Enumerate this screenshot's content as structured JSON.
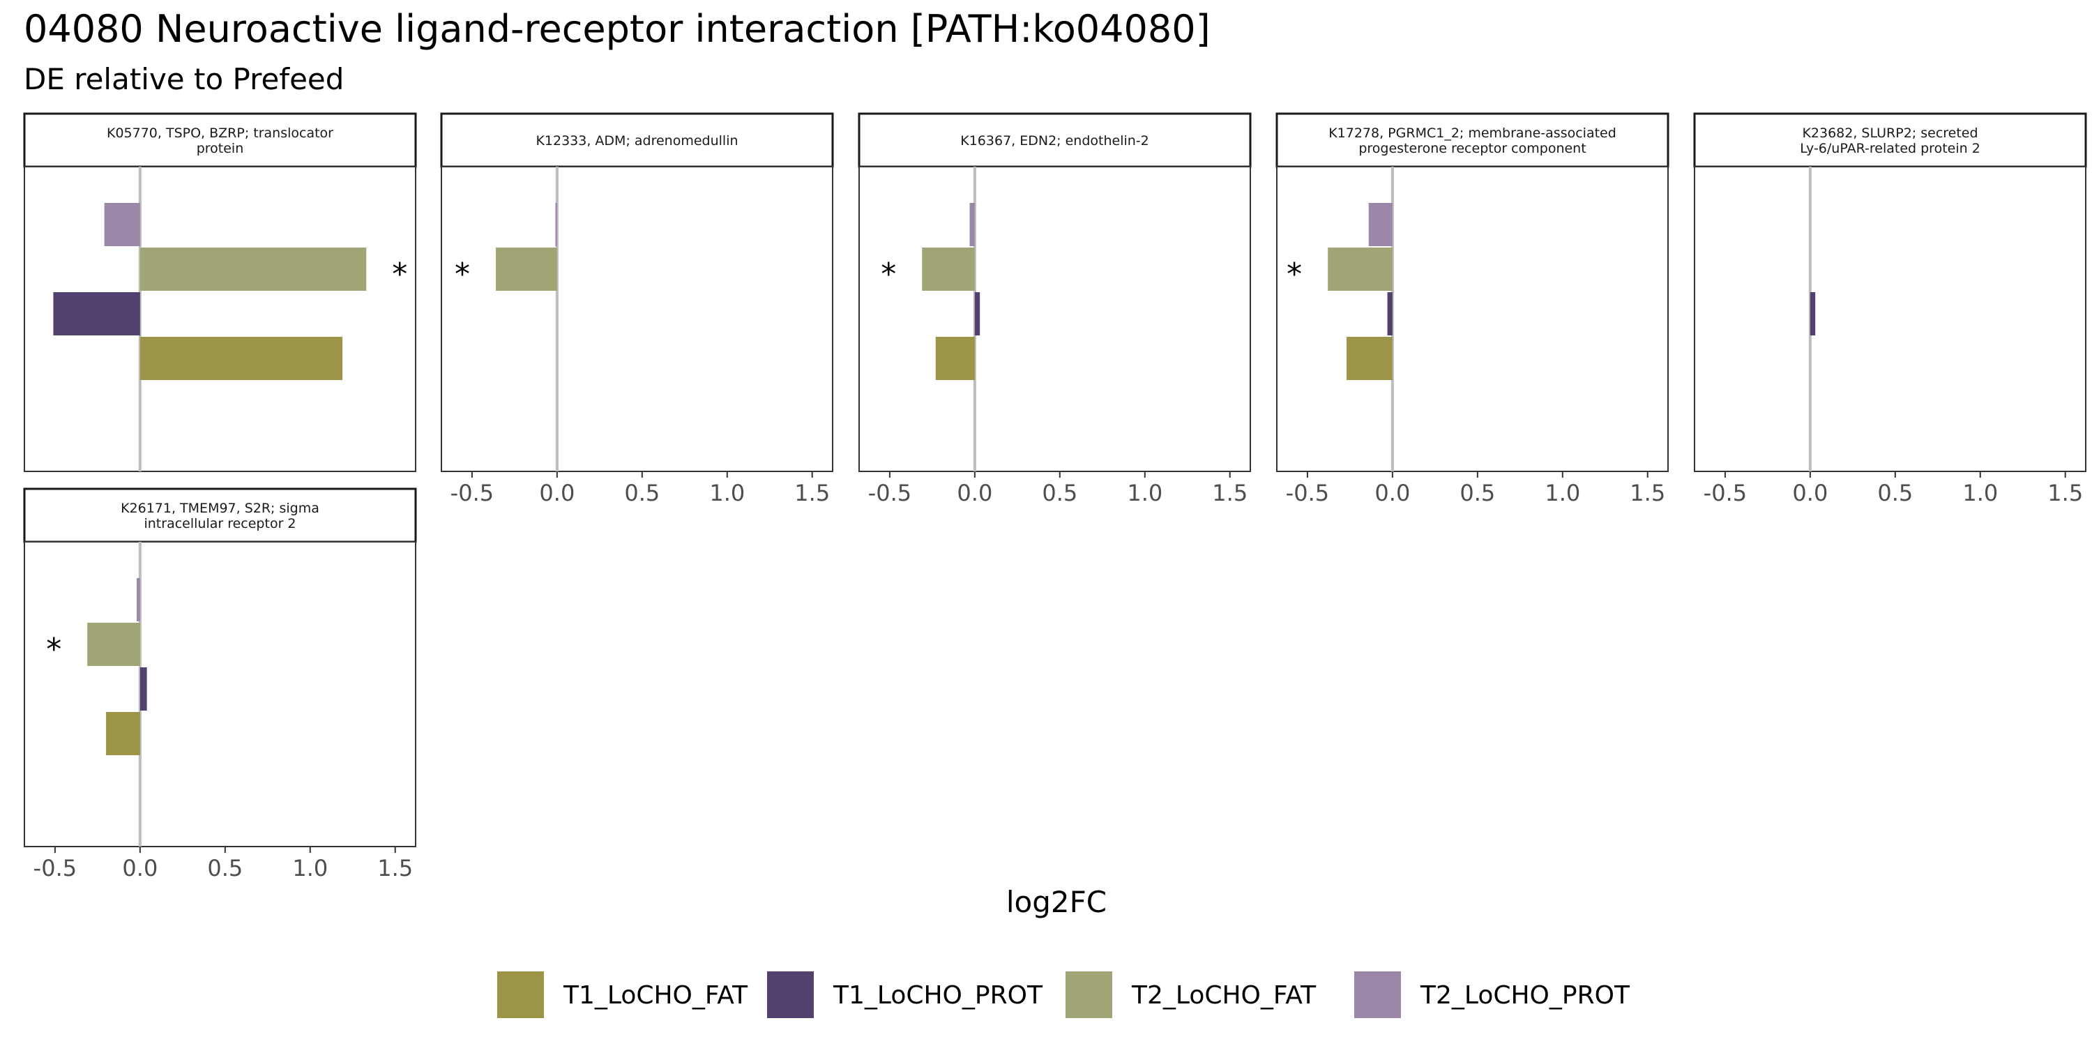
{
  "title": "04080 Neuroactive ligand-receptor interaction [PATH:ko04080]",
  "subtitle": "DE relative to Prefeed",
  "colors": {
    "T1_LoCHO_FAT": "#9C9447",
    "T1_LoCHO_PROT": "#52406E",
    "T2_LoCHO_FAT": "#A1A475",
    "T2_LoCHO_PROT": "#9B87A8"
  },
  "chart_data": {
    "type": "bar",
    "orientation": "horizontal",
    "xlabel": "log2FC",
    "xlim": [
      -0.68,
      1.62
    ],
    "xticks": [
      -0.5,
      0.0,
      0.5,
      1.0,
      1.5
    ],
    "xtick_labels": [
      "-0.5",
      "0.0",
      "0.5",
      "1.0",
      "1.5"
    ],
    "zero_line": true,
    "grid": false,
    "legend_position": "bottom",
    "series_order": [
      "T2_LoCHO_PROT",
      "T2_LoCHO_FAT",
      "T1_LoCHO_PROT",
      "T1_LoCHO_FAT"
    ],
    "legend": [
      "T1_LoCHO_FAT",
      "T1_LoCHO_PROT",
      "T2_LoCHO_FAT",
      "T2_LoCHO_PROT"
    ],
    "facets": [
      {
        "strip": [
          "K05770, TSPO, BZRP; translocator",
          "protein"
        ],
        "values": {
          "T2_LoCHO_PROT": -0.21,
          "T2_LoCHO_FAT": 1.33,
          "T1_LoCHO_PROT": -0.51,
          "T1_LoCHO_FAT": 1.19
        },
        "significant": {
          "T2_LoCHO_FAT": "*"
        }
      },
      {
        "strip": [
          "K12333, ADM; adrenomedullin"
        ],
        "values": {
          "T2_LoCHO_PROT": -0.01,
          "T2_LoCHO_FAT": -0.36,
          "T1_LoCHO_PROT": 0.0,
          "T1_LoCHO_FAT": 0.0
        },
        "significant": {
          "T2_LoCHO_FAT": "*"
        }
      },
      {
        "strip": [
          "K16367, EDN2; endothelin-2"
        ],
        "values": {
          "T2_LoCHO_PROT": -0.03,
          "T2_LoCHO_FAT": -0.31,
          "T1_LoCHO_PROT": 0.03,
          "T1_LoCHO_FAT": -0.23
        },
        "significant": {
          "T2_LoCHO_FAT": "*"
        }
      },
      {
        "strip": [
          "K17278, PGRMC1_2; membrane-associated",
          "progesterone receptor component"
        ],
        "values": {
          "T2_LoCHO_PROT": -0.14,
          "T2_LoCHO_FAT": -0.38,
          "T1_LoCHO_PROT": -0.03,
          "T1_LoCHO_FAT": -0.27
        },
        "significant": {
          "T2_LoCHO_FAT": "*"
        }
      },
      {
        "strip": [
          "K23682, SLURP2; secreted",
          "Ly-6/uPAR-related protein 2"
        ],
        "values": {
          "T2_LoCHO_PROT": 0.0,
          "T2_LoCHO_FAT": 0.0,
          "T1_LoCHO_PROT": 0.03,
          "T1_LoCHO_FAT": 0.0
        },
        "significant": {}
      },
      {
        "strip": [
          "K26171, TMEM97, S2R; sigma",
          "intracellular receptor 2"
        ],
        "values": {
          "T2_LoCHO_PROT": -0.02,
          "T2_LoCHO_FAT": -0.31,
          "T1_LoCHO_PROT": 0.04,
          "T1_LoCHO_FAT": -0.2
        },
        "significant": {
          "T2_LoCHO_FAT": "*"
        }
      }
    ]
  }
}
